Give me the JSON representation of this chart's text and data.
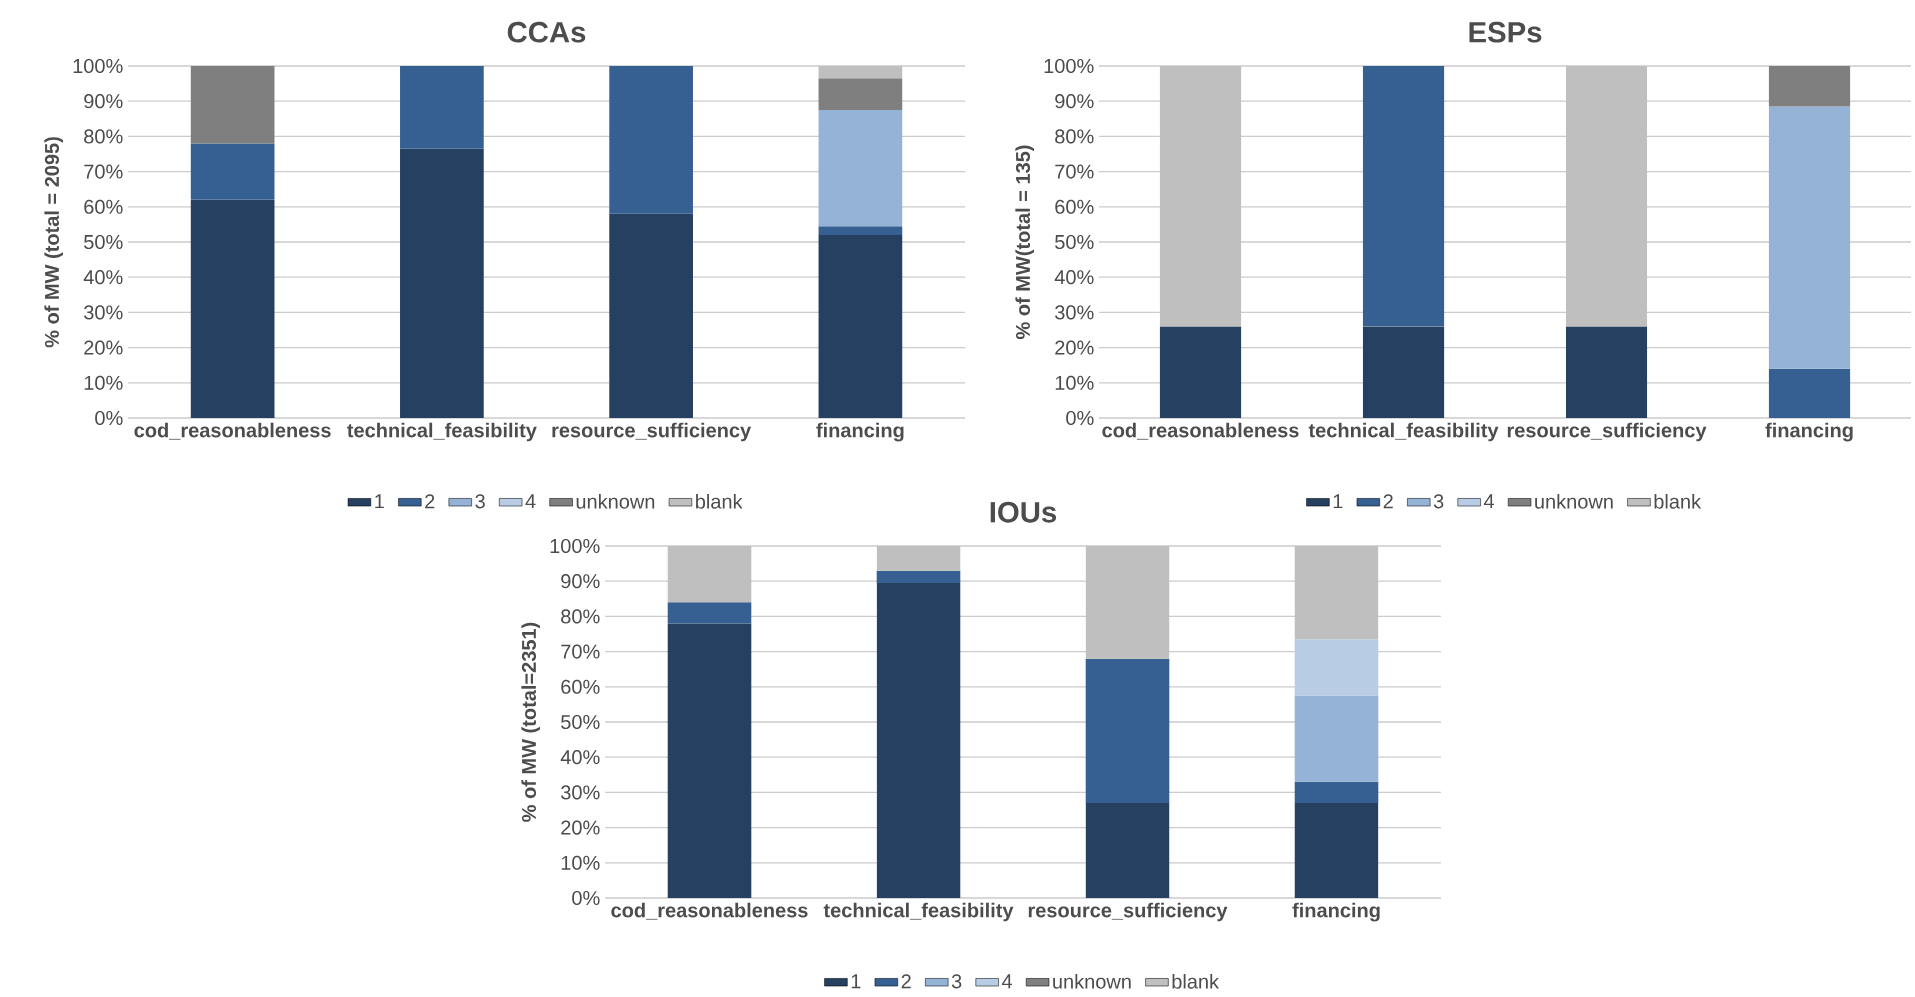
{
  "chart_data": [
    {
      "type": "bar",
      "stacked": true,
      "title": "CCAs",
      "ylabel": "% of MW (total = 2095)",
      "categories": [
        "cod_reasonableness",
        "technical_feasibility",
        "resource_sufficiency",
        "financing"
      ],
      "ylim": [
        0,
        100
      ],
      "yticks": [
        {
          "value": 0,
          "label": "0%"
        },
        {
          "value": 10,
          "label": "10%"
        },
        {
          "value": 20,
          "label": "20%"
        },
        {
          "value": 30,
          "label": "30%"
        },
        {
          "value": 40,
          "label": "40%"
        },
        {
          "value": 50,
          "label": "50%"
        },
        {
          "value": 60,
          "label": "60%"
        },
        {
          "value": 70,
          "label": "70%"
        },
        {
          "value": 80,
          "label": "80%"
        },
        {
          "value": 90,
          "label": "90%"
        },
        {
          "value": 100,
          "label": "100%"
        }
      ],
      "grid": "y",
      "legend": "bottom",
      "series": [
        {
          "name": "1",
          "color": "#264061",
          "values": [
            62,
            76.5,
            58,
            52
          ]
        },
        {
          "name": "2",
          "color": "#366092",
          "values": [
            16,
            23.5,
            42,
            2.5
          ]
        },
        {
          "name": "3",
          "color": "#95b3d7",
          "values": [
            null,
            null,
            null,
            33
          ]
        },
        {
          "name": "4",
          "color": "#b8cce4",
          "values": [
            null,
            null,
            null,
            null
          ]
        },
        {
          "name": "unknown",
          "color": "#7f7f7f",
          "values": [
            22,
            null,
            null,
            9
          ]
        },
        {
          "name": "blank",
          "color": "#bfbfbf",
          "values": [
            null,
            null,
            null,
            3.5
          ]
        }
      ]
    },
    {
      "type": "bar",
      "stacked": true,
      "title": "ESPs",
      "ylabel": "% of MW(total = 135)",
      "categories": [
        "cod_reasonableness",
        "technical_feasibility",
        "resource_sufficiency",
        "financing"
      ],
      "ylim": [
        0,
        100
      ],
      "yticks": [
        {
          "value": 0,
          "label": "0%"
        },
        {
          "value": 10,
          "label": "10%"
        },
        {
          "value": 20,
          "label": "20%"
        },
        {
          "value": 30,
          "label": "30%"
        },
        {
          "value": 40,
          "label": "40%"
        },
        {
          "value": 50,
          "label": "50%"
        },
        {
          "value": 60,
          "label": "60%"
        },
        {
          "value": 70,
          "label": "70%"
        },
        {
          "value": 80,
          "label": "80%"
        },
        {
          "value": 90,
          "label": "90%"
        },
        {
          "value": 100,
          "label": "100%"
        }
      ],
      "grid": "y",
      "legend": "bottom",
      "series": [
        {
          "name": "1",
          "color": "#264061",
          "values": [
            26,
            26,
            26,
            null
          ]
        },
        {
          "name": "2",
          "color": "#366092",
          "values": [
            null,
            74,
            null,
            14
          ]
        },
        {
          "name": "3",
          "color": "#95b3d7",
          "values": [
            null,
            null,
            null,
            74.5
          ]
        },
        {
          "name": "4",
          "color": "#b8cce4",
          "values": [
            null,
            null,
            null,
            null
          ]
        },
        {
          "name": "unknown",
          "color": "#7f7f7f",
          "values": [
            null,
            null,
            null,
            11.5
          ]
        },
        {
          "name": "blank",
          "color": "#bfbfbf",
          "values": [
            74,
            null,
            74,
            null
          ]
        }
      ]
    },
    {
      "type": "bar",
      "stacked": true,
      "title": "IOUs",
      "ylabel": "% of MW (total=2351)",
      "categories": [
        "cod_reasonableness",
        "technical_feasibility",
        "resource_sufficiency",
        "financing"
      ],
      "ylim": [
        0,
        100
      ],
      "yticks": [
        {
          "value": 0,
          "label": "0%"
        },
        {
          "value": 10,
          "label": "10%"
        },
        {
          "value": 20,
          "label": "20%"
        },
        {
          "value": 30,
          "label": "30%"
        },
        {
          "value": 40,
          "label": "40%"
        },
        {
          "value": 50,
          "label": "50%"
        },
        {
          "value": 60,
          "label": "60%"
        },
        {
          "value": 70,
          "label": "70%"
        },
        {
          "value": 80,
          "label": "80%"
        },
        {
          "value": 90,
          "label": "90%"
        },
        {
          "value": 100,
          "label": "100%"
        }
      ],
      "grid": "y",
      "legend": "bottom",
      "series": [
        {
          "name": "1",
          "color": "#264061",
          "values": [
            78,
            89.5,
            27,
            27
          ]
        },
        {
          "name": "2",
          "color": "#366092",
          "values": [
            6,
            3.5,
            41,
            6
          ]
        },
        {
          "name": "3",
          "color": "#95b3d7",
          "values": [
            null,
            null,
            null,
            24.5
          ]
        },
        {
          "name": "4",
          "color": "#b8cce4",
          "values": [
            null,
            null,
            null,
            16
          ]
        },
        {
          "name": "unknown",
          "color": "#7f7f7f",
          "values": [
            null,
            null,
            null,
            null
          ]
        },
        {
          "name": "blank",
          "color": "#bfbfbf",
          "values": [
            16,
            7,
            32,
            26.5
          ]
        }
      ]
    }
  ]
}
